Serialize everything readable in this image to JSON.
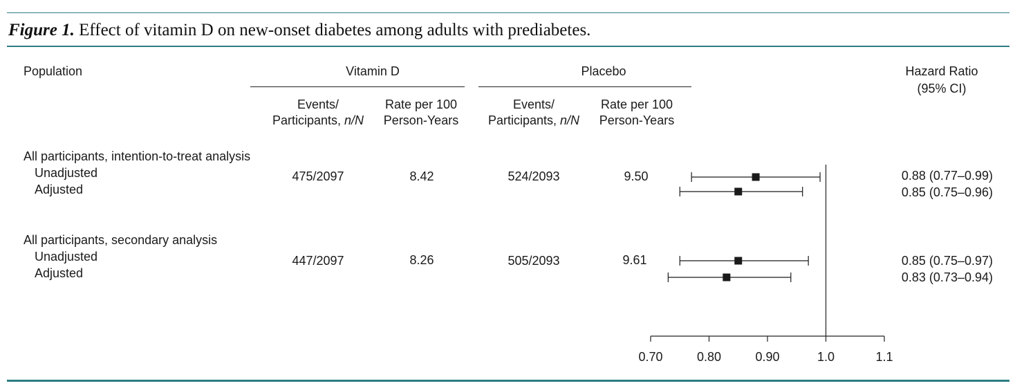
{
  "title": {
    "label": "Figure 1.",
    "text": "Effect of vitamin D on new-onset diabetes among adults with prediabetes."
  },
  "headers": {
    "population": "Population",
    "vitamin_d": "Vitamin D",
    "placebo": "Placebo",
    "hazard_ratio": "Hazard Ratio",
    "ci": "(95% CI)",
    "events_line1": "Events/",
    "events_line2_prefix": "Participants, ",
    "events_line2_italic": "n/N",
    "rate_line1": "Rate per 100",
    "rate_line2": "Person-Years"
  },
  "groups": [
    {
      "name": "All participants, intention-to-treat analysis",
      "rows": [
        {
          "label": "Unadjusted",
          "hr_text": "0.88 (0.77–0.99)"
        },
        {
          "label": "Adjusted",
          "hr_text": "0.85 (0.75–0.96)"
        }
      ],
      "vitd_events": "475/2097",
      "vitd_rate": "8.42",
      "placebo_events": "524/2093",
      "placebo_rate": "9.50"
    },
    {
      "name": "All participants, secondary analysis",
      "rows": [
        {
          "label": "Unadjusted",
          "hr_text": "0.85 (0.75–0.97)"
        },
        {
          "label": "Adjusted",
          "hr_text": "0.83 (0.73–0.94)"
        }
      ],
      "vitd_events": "447/2097",
      "vitd_rate": "8.26",
      "placebo_events": "505/2093",
      "placebo_rate": "9.61"
    }
  ],
  "chart_data": {
    "type": "forest",
    "x_scale": "linear",
    "xlim": [
      0.7,
      1.1
    ],
    "ticks": [
      0.7,
      0.8,
      0.9,
      1.0,
      1.1
    ],
    "tick_labels": [
      "0.70",
      "0.80",
      "0.90",
      "1.0",
      "1.1"
    ],
    "reference_line": 1.0,
    "series": [
      {
        "name": "Intention-to-treat, unadjusted",
        "hr": 0.88,
        "lower": 0.77,
        "upper": 0.99
      },
      {
        "name": "Intention-to-treat, adjusted",
        "hr": 0.85,
        "lower": 0.75,
        "upper": 0.96
      },
      {
        "name": "Secondary analysis, unadjusted",
        "hr": 0.85,
        "lower": 0.75,
        "upper": 0.97
      },
      {
        "name": "Secondary analysis, adjusted",
        "hr": 0.83,
        "lower": 0.73,
        "upper": 0.94
      }
    ]
  },
  "colors": {
    "accent_rule": "#2a7d82",
    "marker": "#1a1a1a"
  }
}
